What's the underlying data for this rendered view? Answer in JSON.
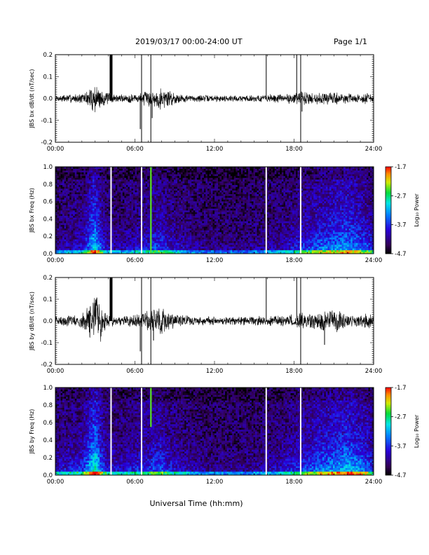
{
  "header": {
    "date_range": "2019/03/17  00:00-24:00 UT",
    "page": "Page 1/1"
  },
  "chart_data": [
    {
      "type": "line",
      "ylabel": "JBS bx dB/dt (nT/sec)",
      "ylim": [
        -0.2,
        0.2
      ],
      "yticks": [
        -0.2,
        -0.1,
        0.0,
        0.1,
        0.2
      ],
      "ytick_labels": [
        "-0.2",
        "-0.1",
        "0.0",
        "0.1",
        "0.2"
      ],
      "x_unit": "hours UT",
      "xlim": [
        0,
        24
      ],
      "xticks": [
        0,
        6,
        12,
        18,
        24
      ],
      "xtick_labels": [
        "00:00",
        "06:00",
        "12:00",
        "18:00",
        "24:00"
      ],
      "envelope": {
        "x": [
          0,
          1,
          2,
          2.5,
          2.8,
          3.0,
          3.3,
          3.7,
          4.0,
          4.5,
          5,
          5.5,
          6,
          6.5,
          7,
          7.5,
          8,
          8.5,
          9,
          10,
          11,
          12,
          13,
          14,
          15,
          16,
          17,
          18,
          18.5,
          19,
          19.5,
          20,
          20.5,
          21,
          21.5,
          22,
          22.5,
          23,
          23.5,
          24
        ],
        "amp": [
          0.012,
          0.015,
          0.018,
          0.03,
          0.05,
          0.055,
          0.045,
          0.025,
          0.02,
          0.016,
          0.014,
          0.016,
          0.02,
          0.02,
          0.03,
          0.035,
          0.04,
          0.035,
          0.02,
          0.014,
          0.012,
          0.012,
          0.011,
          0.012,
          0.013,
          0.015,
          0.016,
          0.02,
          0.028,
          0.025,
          0.022,
          0.02,
          0.025,
          0.024,
          0.02,
          0.018,
          0.016,
          0.014,
          0.022,
          0.014
        ]
      },
      "data_gaps": [
        {
          "x": 4.2,
          "ymin": -0.01,
          "ymax": 0.2,
          "thick": true
        },
        {
          "x": 6.5,
          "ymin": -0.2,
          "ymax": 0.2
        },
        {
          "x": 7.2,
          "ymin": -0.2,
          "ymax": 0.2
        },
        {
          "x": 15.9,
          "ymin": 0.0,
          "ymax": 0.2
        },
        {
          "x": 18.2,
          "ymin": 0.0,
          "ymax": 0.2
        },
        {
          "x": 18.5,
          "ymin": -0.2,
          "ymax": 0.2
        }
      ],
      "spikes": [
        {
          "x": 6.4,
          "y": -0.14
        },
        {
          "x": 7.3,
          "y": -0.09
        },
        {
          "x": 18.6,
          "y": -0.06
        }
      ]
    },
    {
      "type": "heatmap",
      "ylabel": "JBS bx Freq (Hz)",
      "ylim": [
        0,
        1.0
      ],
      "yticks": [
        0.0,
        0.2,
        0.4,
        0.6,
        0.8,
        1.0
      ],
      "ytick_labels": [
        "0.0",
        "0.2",
        "0.4",
        "0.6",
        "0.8",
        "1.0"
      ],
      "xlim": [
        0,
        24
      ],
      "xticks": [
        0,
        6,
        12,
        18,
        24
      ],
      "xtick_labels": [
        "00:00",
        "06:00",
        "12:00",
        "18:00",
        "24:00"
      ],
      "colorbar": {
        "label": "Log₁₀ Power",
        "range": [
          -4.7,
          -1.7
        ],
        "ticks": [
          -1.7,
          -2.7,
          -3.7,
          -4.7
        ],
        "tick_labels": [
          "-1.7",
          "-2.7",
          "-3.7",
          "-4.7"
        ]
      },
      "activity": {
        "x": [
          0,
          1,
          2,
          2.5,
          2.8,
          3.0,
          3.3,
          3.7,
          4.2,
          5,
          6,
          7,
          7.5,
          8,
          8.5,
          9,
          10,
          11,
          12,
          13,
          14,
          15,
          16,
          17,
          18,
          19,
          20,
          21,
          22,
          22.5,
          23,
          23.5,
          24
        ],
        "level": [
          0.2,
          0.25,
          0.3,
          0.55,
          0.75,
          0.8,
          0.6,
          0.35,
          0.25,
          0.22,
          0.3,
          0.35,
          0.45,
          0.45,
          0.35,
          0.3,
          0.22,
          0.18,
          0.16,
          0.15,
          0.16,
          0.18,
          0.2,
          0.25,
          0.35,
          0.45,
          0.55,
          0.6,
          0.65,
          0.62,
          0.55,
          0.5,
          0.35
        ]
      },
      "gaps_x": [
        4.2,
        6.5,
        15.9,
        18.5
      ],
      "narrowband": [
        {
          "x": 7.2,
          "fmin": 0.0,
          "fmax": 1.0,
          "level": 0.75
        }
      ],
      "seed": 11
    },
    {
      "type": "line",
      "ylabel": "JBS by dB/dt (nT/sec)",
      "ylim": [
        -0.2,
        0.2
      ],
      "yticks": [
        -0.2,
        -0.1,
        0.0,
        0.1,
        0.2
      ],
      "ytick_labels": [
        "-0.2",
        "-0.1",
        "0.0",
        "0.1",
        "0.2"
      ],
      "x_unit": "hours UT",
      "xlim": [
        0,
        24
      ],
      "xticks": [
        0,
        6,
        12,
        18,
        24
      ],
      "xtick_labels": [
        "00:00",
        "06:00",
        "12:00",
        "18:00",
        "24:00"
      ],
      "envelope": {
        "x": [
          0,
          1,
          2,
          2.5,
          2.8,
          3.0,
          3.3,
          3.7,
          4.0,
          4.5,
          5,
          5.5,
          6,
          6.5,
          7,
          7.5,
          8,
          8.5,
          9,
          10,
          11,
          12,
          13,
          14,
          15,
          16,
          17,
          18,
          18.5,
          19,
          19.5,
          20,
          20.5,
          21,
          21.5,
          22,
          22.5,
          23,
          23.5,
          24
        ],
        "amp": [
          0.018,
          0.02,
          0.025,
          0.06,
          0.09,
          0.1,
          0.08,
          0.04,
          0.025,
          0.02,
          0.018,
          0.02,
          0.025,
          0.03,
          0.035,
          0.045,
          0.05,
          0.04,
          0.025,
          0.018,
          0.016,
          0.015,
          0.014,
          0.015,
          0.016,
          0.018,
          0.02,
          0.025,
          0.03,
          0.028,
          0.03,
          0.035,
          0.04,
          0.045,
          0.035,
          0.025,
          0.02,
          0.018,
          0.03,
          0.018
        ]
      },
      "data_gaps": [
        {
          "x": 4.2,
          "ymin": 0.0,
          "ymax": 0.2,
          "thick": true
        },
        {
          "x": 6.5,
          "ymin": -0.2,
          "ymax": 0.2
        },
        {
          "x": 7.2,
          "ymin": -0.2,
          "ymax": 0.2
        },
        {
          "x": 15.9,
          "ymin": 0.0,
          "ymax": 0.2
        },
        {
          "x": 18.2,
          "ymin": 0.0,
          "ymax": 0.2
        },
        {
          "x": 18.5,
          "ymin": -0.2,
          "ymax": 0.2
        }
      ],
      "spikes": [
        {
          "x": 6.4,
          "y": -0.14
        },
        {
          "x": 7.4,
          "y": -0.09
        },
        {
          "x": 20.3,
          "y": -0.11
        }
      ]
    },
    {
      "type": "heatmap",
      "ylabel": "JBS by Freq (Hz)",
      "ylim": [
        0,
        1.0
      ],
      "yticks": [
        0.0,
        0.2,
        0.4,
        0.6,
        0.8,
        1.0
      ],
      "ytick_labels": [
        "0.0",
        "0.2",
        "0.4",
        "0.6",
        "0.8",
        "1.0"
      ],
      "xlim": [
        0,
        24
      ],
      "xticks": [
        0,
        6,
        12,
        18,
        24
      ],
      "xtick_labels": [
        "00:00",
        "06:00",
        "12:00",
        "18:00",
        "24:00"
      ],
      "colorbar": {
        "label": "Log₁₀ Power",
        "range": [
          -4.7,
          -1.7
        ],
        "ticks": [
          -1.7,
          -2.7,
          -3.7,
          -4.7
        ],
        "tick_labels": [
          "-1.7",
          "-2.7",
          "-3.7",
          "-4.7"
        ]
      },
      "activity": {
        "x": [
          0,
          1,
          2,
          2.5,
          2.8,
          3.0,
          3.3,
          3.7,
          4.2,
          5,
          6,
          7,
          7.5,
          8,
          8.5,
          9,
          10,
          11,
          12,
          13,
          14,
          15,
          16,
          17,
          18,
          19,
          20,
          21,
          22,
          22.5,
          23,
          23.5,
          24
        ],
        "level": [
          0.3,
          0.35,
          0.42,
          0.65,
          0.85,
          0.9,
          0.7,
          0.42,
          0.32,
          0.3,
          0.38,
          0.42,
          0.5,
          0.5,
          0.4,
          0.35,
          0.26,
          0.2,
          0.18,
          0.17,
          0.18,
          0.2,
          0.24,
          0.3,
          0.4,
          0.5,
          0.6,
          0.66,
          0.72,
          0.7,
          0.62,
          0.56,
          0.4
        ]
      },
      "gaps_x": [
        4.2,
        6.5,
        15.9,
        18.5
      ],
      "narrowband": [
        {
          "x": 7.2,
          "fmin": 0.55,
          "fmax": 1.0,
          "level": 0.75
        }
      ],
      "seed": 29
    }
  ],
  "xaxis_label": "Universal Time (hh:mm)"
}
